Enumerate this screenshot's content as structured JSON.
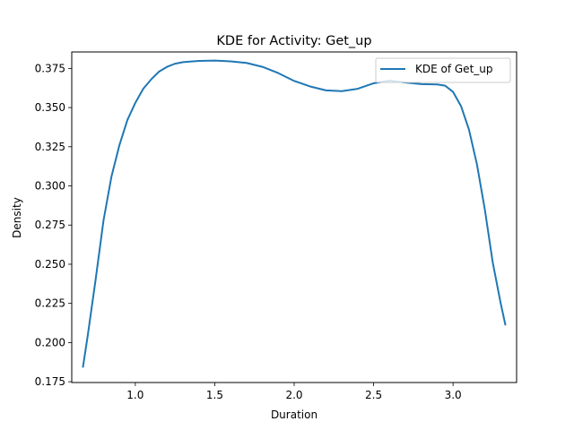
{
  "chart_data": {
    "type": "line",
    "title": "KDE for Activity: Get_up",
    "xlabel": "Duration",
    "ylabel": "Density",
    "xlim": [
      0.6,
      3.4
    ],
    "ylim": [
      0.1745,
      0.3855
    ],
    "xticks": [
      1.0,
      1.5,
      2.0,
      2.5,
      3.0
    ],
    "xtick_labels": [
      "1.0",
      "1.5",
      "2.0",
      "2.5",
      "3.0"
    ],
    "yticks": [
      0.175,
      0.2,
      0.225,
      0.25,
      0.275,
      0.3,
      0.325,
      0.35,
      0.375
    ],
    "ytick_labels": [
      "0.175",
      "0.200",
      "0.225",
      "0.250",
      "0.275",
      "0.300",
      "0.325",
      "0.350",
      "0.375"
    ],
    "grid": false,
    "legend_position": "top-right",
    "series": [
      {
        "name": "KDE of Get_up",
        "color": "#1f77b4",
        "x": [
          0.67,
          0.7,
          0.75,
          0.8,
          0.85,
          0.9,
          0.95,
          1.0,
          1.05,
          1.1,
          1.15,
          1.2,
          1.25,
          1.3,
          1.4,
          1.5,
          1.6,
          1.7,
          1.8,
          1.9,
          2.0,
          2.1,
          2.2,
          2.3,
          2.4,
          2.5,
          2.6,
          2.7,
          2.8,
          2.9,
          2.95,
          3.0,
          3.05,
          3.1,
          3.15,
          3.2,
          3.25,
          3.3,
          3.33
        ],
        "y": [
          0.184,
          0.204,
          0.24,
          0.278,
          0.306,
          0.326,
          0.342,
          0.353,
          0.362,
          0.368,
          0.373,
          0.376,
          0.378,
          0.379,
          0.3798,
          0.38,
          0.3795,
          0.3785,
          0.376,
          0.372,
          0.367,
          0.3635,
          0.361,
          0.3605,
          0.362,
          0.3655,
          0.3672,
          0.366,
          0.365,
          0.3648,
          0.364,
          0.36,
          0.351,
          0.336,
          0.314,
          0.285,
          0.251,
          0.225,
          0.211
        ]
      }
    ]
  }
}
